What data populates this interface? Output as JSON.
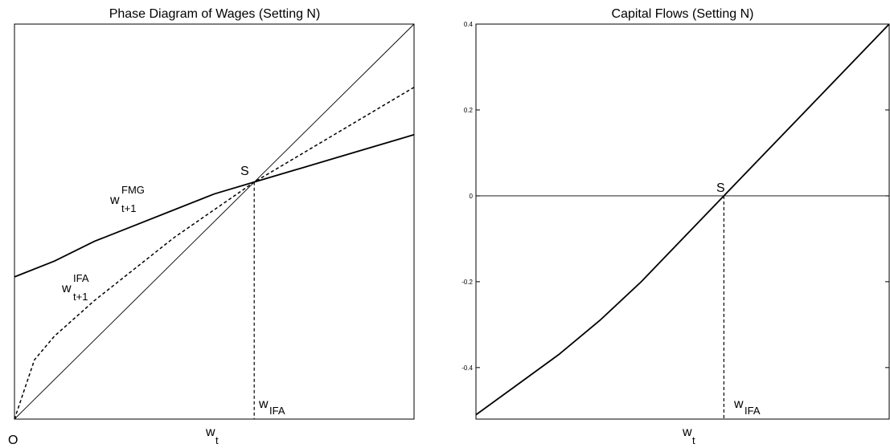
{
  "chart_data": [
    {
      "type": "line",
      "title": "Phase Diagram of Wages (Setting N)",
      "xlabel": "w_t",
      "origin_label": "O",
      "point_label": "S",
      "marker_label": "w_IFA",
      "ticks": "none",
      "xlim": [
        0,
        1
      ],
      "ylim": [
        0,
        1
      ],
      "equilibrium": {
        "x": 0.6,
        "y": 0.6
      },
      "series": [
        {
          "name": "45-degree line",
          "style": "thin-solid",
          "x": [
            0,
            0.6,
            1.0
          ],
          "y": [
            0,
            0.6,
            1.0
          ]
        },
        {
          "name": "w_{t+1}^{IFA}",
          "style": "dashed",
          "x": [
            0,
            0.05,
            0.1,
            0.2,
            0.3,
            0.4,
            0.5,
            0.6,
            0.7,
            0.8,
            0.9,
            1.0
          ],
          "y": [
            0,
            0.15,
            0.21,
            0.3,
            0.38,
            0.46,
            0.53,
            0.6,
            0.66,
            0.72,
            0.78,
            0.84
          ]
        },
        {
          "name": "w_{t+1}^{FMG}",
          "style": "thick-solid",
          "x": [
            0,
            0.1,
            0.2,
            0.3,
            0.4,
            0.5,
            0.6,
            0.7,
            0.8,
            0.9,
            1.0
          ],
          "y": [
            0.36,
            0.4,
            0.45,
            0.49,
            0.53,
            0.57,
            0.6,
            0.63,
            0.66,
            0.69,
            0.72
          ]
        }
      ],
      "curve_labels": [
        {
          "base": "w",
          "sup": "FMG",
          "sub": "t+1"
        },
        {
          "base": "w",
          "sup": "IFA",
          "sub": "t+1"
        }
      ],
      "xlabel_parts": {
        "base": "w",
        "sub": "t"
      },
      "marker_parts": {
        "base": "w",
        "sub": "IFA"
      }
    },
    {
      "type": "line",
      "title": "Capital Flows (Setting N)",
      "xlabel": "w_t",
      "point_label": "S",
      "marker_label": "w_IFA",
      "xlim": [
        0,
        1
      ],
      "ylim": [
        -0.52,
        0.4
      ],
      "yticks": [
        "0.4",
        "0.2",
        "0",
        "-0.2",
        "-0.4"
      ],
      "ytick_values": [
        0.4,
        0.2,
        0,
        -0.2,
        -0.4
      ],
      "equilibrium": {
        "x": 0.6,
        "y": 0
      },
      "series": [
        {
          "name": "zero line",
          "style": "thin-solid",
          "x": [
            0,
            1
          ],
          "y": [
            0,
            0
          ]
        },
        {
          "name": "capital flow",
          "style": "thick-solid",
          "x": [
            0,
            0.1,
            0.2,
            0.3,
            0.4,
            0.5,
            0.6,
            0.7,
            0.8,
            0.9,
            1.0
          ],
          "y": [
            -0.51,
            -0.44,
            -0.37,
            -0.29,
            -0.2,
            -0.1,
            0.0,
            0.1,
            0.2,
            0.3,
            0.4
          ]
        }
      ],
      "xlabel_parts": {
        "base": "w",
        "sub": "t"
      },
      "marker_parts": {
        "base": "w",
        "sub": "IFA"
      }
    }
  ]
}
